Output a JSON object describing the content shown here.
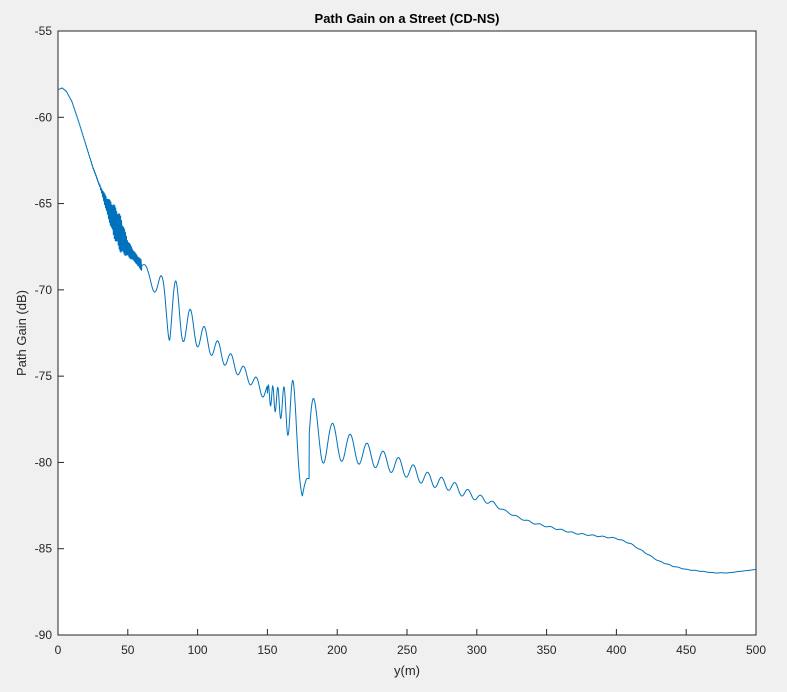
{
  "chart_data": {
    "type": "line",
    "title": "Path Gain on a Street (CD-NS)",
    "xlabel": "y(m)",
    "ylabel": "Path Gain (dB)",
    "xlim": [
      0,
      500
    ],
    "ylim": [
      -90,
      -55
    ],
    "x_ticks": [
      0,
      50,
      100,
      150,
      200,
      250,
      300,
      350,
      400,
      450,
      500
    ],
    "y_ticks": [
      -90,
      -85,
      -80,
      -75,
      -70,
      -65,
      -60,
      -55
    ],
    "grid": false,
    "line_color": "#0072bd",
    "series": [
      {
        "points": [
          [
            0,
            -58.4
          ],
          [
            3,
            -58.3
          ],
          [
            6,
            -58.5
          ],
          [
            10,
            -59.1
          ],
          [
            15,
            -60.3
          ],
          [
            20,
            -61.6
          ],
          [
            25,
            -62.9
          ],
          [
            30,
            -64.0
          ],
          [
            35,
            -65.1
          ],
          [
            40,
            -66.0
          ],
          [
            45,
            -66.8
          ],
          [
            50,
            -67.6
          ],
          [
            55,
            -68.1
          ],
          [
            60,
            -68.6
          ],
          [
            65,
            -69.2
          ],
          [
            70,
            -69.7
          ],
          [
            75,
            -70.2
          ],
          [
            80,
            -70.8
          ],
          [
            85,
            -71.3
          ],
          [
            90,
            -71.8
          ],
          [
            100,
            -72.5
          ],
          [
            110,
            -73.2
          ],
          [
            120,
            -73.9
          ],
          [
            130,
            -74.6
          ],
          [
            140,
            -75.3
          ],
          [
            150,
            -76.0
          ],
          [
            160,
            -76.6
          ],
          [
            170,
            -77.4
          ],
          [
            175,
            -78.0
          ],
          [
            180,
            -78.3
          ],
          [
            190,
            -78.6
          ],
          [
            200,
            -78.9
          ],
          [
            210,
            -79.2
          ],
          [
            220,
            -79.5
          ],
          [
            230,
            -79.8
          ],
          [
            240,
            -80.1
          ],
          [
            250,
            -80.4
          ],
          [
            260,
            -80.8
          ],
          [
            270,
            -81.1
          ],
          [
            280,
            -81.3
          ],
          [
            290,
            -81.7
          ],
          [
            300,
            -82.0
          ],
          [
            310,
            -82.3
          ],
          [
            320,
            -82.8
          ],
          [
            330,
            -83.2
          ],
          [
            340,
            -83.5
          ],
          [
            350,
            -83.7
          ],
          [
            360,
            -83.9
          ],
          [
            370,
            -84.1
          ],
          [
            380,
            -84.2
          ],
          [
            390,
            -84.3
          ],
          [
            400,
            -84.4
          ],
          [
            410,
            -84.7
          ],
          [
            420,
            -85.2
          ],
          [
            430,
            -85.7
          ],
          [
            440,
            -86.0
          ],
          [
            450,
            -86.2
          ],
          [
            460,
            -86.3
          ],
          [
            470,
            -86.4
          ],
          [
            480,
            -86.4
          ],
          [
            490,
            -86.3
          ],
          [
            500,
            -86.2
          ]
        ],
        "ripple_envelope": [
          [
            0,
            0
          ],
          [
            30,
            0.05
          ],
          [
            35,
            0.5
          ],
          [
            40,
            1.0
          ],
          [
            45,
            1.1
          ],
          [
            50,
            0.5
          ],
          [
            55,
            0.3
          ],
          [
            65,
            0.35
          ],
          [
            70,
            0.6
          ],
          [
            75,
            1.0
          ],
          [
            78,
            1.6
          ],
          [
            80,
            2.3
          ],
          [
            83,
            1.9
          ],
          [
            90,
            1.2
          ],
          [
            100,
            0.8
          ],
          [
            110,
            0.6
          ],
          [
            120,
            0.5
          ],
          [
            130,
            0.4
          ],
          [
            140,
            0.35
          ],
          [
            150,
            0.5
          ],
          [
            160,
            0.9
          ],
          [
            165,
            1.5
          ],
          [
            170,
            2.3
          ],
          [
            175,
            4.0
          ],
          [
            178,
            3.0
          ],
          [
            185,
            1.8
          ],
          [
            195,
            1.1
          ],
          [
            210,
            0.8
          ],
          [
            230,
            0.55
          ],
          [
            245,
            0.5
          ],
          [
            260,
            0.4
          ],
          [
            270,
            0.35
          ],
          [
            285,
            0.3
          ],
          [
            300,
            0.2
          ],
          [
            320,
            0.05
          ],
          [
            500,
            0
          ]
        ]
      }
    ]
  }
}
